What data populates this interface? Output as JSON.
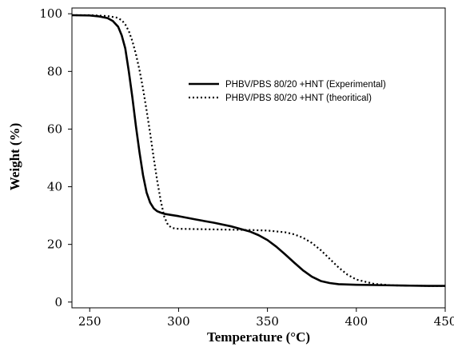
{
  "chart_data": {
    "type": "line",
    "title": "",
    "xlabel": "Temperature (°C)",
    "ylabel": "Weight (%)",
    "xlim": [
      240,
      450
    ],
    "ylim": [
      -2,
      102
    ],
    "xticks": [
      250,
      300,
      350,
      400,
      450
    ],
    "yticks": [
      0,
      20,
      40,
      60,
      80,
      100
    ],
    "grid": false,
    "legend_position": "top-right",
    "series": [
      {
        "name": "PHBV/PBS 80/20 +HNT (Experimental)",
        "style": "solid",
        "color": "#000000",
        "x": [
          240,
          250,
          255,
          260,
          263,
          266,
          268,
          270,
          272,
          274,
          276,
          278,
          280,
          282,
          284,
          286,
          288,
          290,
          292,
          295,
          300,
          310,
          320,
          330,
          340,
          345,
          350,
          355,
          360,
          365,
          370,
          375,
          380,
          385,
          390,
          395,
          400,
          410,
          420,
          430,
          440,
          450
        ],
        "y": [
          99.5,
          99.4,
          99.1,
          98.5,
          97.5,
          95.5,
          92.5,
          88,
          80,
          71,
          61,
          52,
          44,
          38,
          34.5,
          32.5,
          31.5,
          31,
          30.6,
          30.3,
          29.8,
          28.6,
          27.5,
          26.2,
          24.5,
          23.2,
          21.5,
          19.2,
          16.5,
          13.7,
          11,
          8.8,
          7.3,
          6.6,
          6.2,
          6.1,
          6,
          5.9,
          5.8,
          5.7,
          5.6,
          5.6
        ]
      },
      {
        "name": "PHBV/PBS 80/20 +HNT (theoritical)",
        "style": "dotted",
        "color": "#000000",
        "x": [
          240,
          250,
          260,
          265,
          268,
          270,
          272,
          274,
          276,
          278,
          280,
          282,
          284,
          286,
          288,
          290,
          292,
          294,
          296,
          298,
          300,
          310,
          320,
          330,
          340,
          350,
          360,
          365,
          370,
          375,
          380,
          385,
          390,
          395,
          400,
          410,
          420,
          430,
          440,
          450
        ],
        "y": [
          99.5,
          99.5,
          99.2,
          98.7,
          97.8,
          96.3,
          94,
          90.5,
          86,
          80.5,
          74,
          66.5,
          58.5,
          50,
          42,
          35,
          29.5,
          26.8,
          25.8,
          25.5,
          25.4,
          25.3,
          25.2,
          25.1,
          25,
          24.8,
          24.2,
          23.5,
          22.3,
          20.5,
          18,
          15,
          12,
          9.5,
          7.8,
          6.3,
          5.8,
          5.7,
          5.6,
          5.6
        ]
      }
    ]
  }
}
